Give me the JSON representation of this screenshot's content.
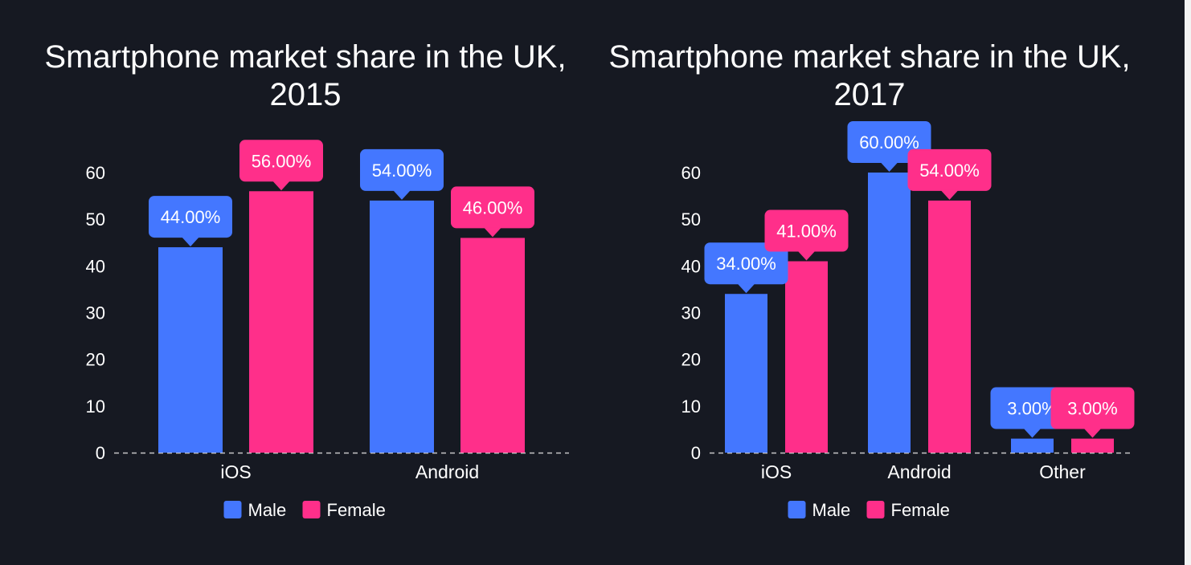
{
  "chart_data": [
    {
      "type": "bar",
      "title": [
        "Smartphone market share in the UK,",
        "2015"
      ],
      "categories": [
        "iOS",
        "Android"
      ],
      "series": [
        {
          "name": "Male",
          "values": [
            44,
            54
          ],
          "color": "#4477ff"
        },
        {
          "name": "Female",
          "values": [
            56,
            46
          ],
          "color": "#ff2f8a"
        }
      ],
      "data_labels": [
        [
          "44.00%",
          "54.00%"
        ],
        [
          "56.00%",
          "46.00%"
        ]
      ],
      "ylim": [
        0,
        60
      ],
      "yticks": [
        0,
        10,
        20,
        30,
        40,
        50,
        60
      ],
      "xlabel": "",
      "ylabel": "",
      "legend": "bottom",
      "grid": false
    },
    {
      "type": "bar",
      "title": [
        "Smartphone market share in the UK,",
        "2017"
      ],
      "categories": [
        "iOS",
        "Android",
        "Other"
      ],
      "series": [
        {
          "name": "Male",
          "values": [
            34,
            60,
            3
          ],
          "color": "#4477ff"
        },
        {
          "name": "Female",
          "values": [
            41,
            54,
            3
          ],
          "color": "#ff2f8a"
        }
      ],
      "data_labels": [
        [
          "34.00%",
          "60.00%",
          "3.00%"
        ],
        [
          "41.00%",
          "54.00%",
          "3.00%"
        ]
      ],
      "ylim": [
        0,
        60
      ],
      "yticks": [
        0,
        10,
        20,
        30,
        40,
        50,
        60
      ],
      "xlabel": "",
      "ylabel": "",
      "legend": "bottom",
      "grid": false
    }
  ]
}
